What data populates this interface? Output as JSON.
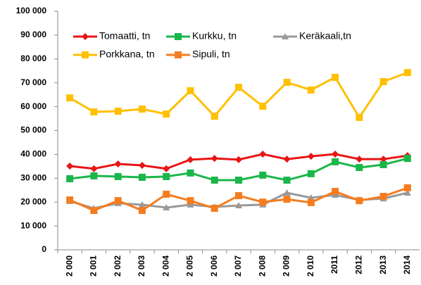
{
  "chart_data": {
    "type": "line",
    "categories": [
      "2 000",
      "2 001",
      "2 002",
      "2 003",
      "2 004",
      "2 005",
      "2 006",
      "2 007",
      "2 008",
      "2 009",
      "2 010",
      "2011",
      "2012",
      "2013",
      "2014"
    ],
    "series": [
      {
        "name": "Tomaatti, tn",
        "color": "#e81515",
        "marker": "diamond",
        "values": [
          35100,
          34000,
          36000,
          35400,
          34000,
          37800,
          38300,
          37800,
          40100,
          38000,
          39200,
          40100,
          38000,
          38000,
          39500
        ]
      },
      {
        "name": "Kurkku, tn",
        "color": "#1bb64a",
        "marker": "square",
        "values": [
          29800,
          31000,
          30700,
          30400,
          30700,
          32200,
          29200,
          29200,
          31300,
          29200,
          31900,
          36900,
          34500,
          35700,
          38300
        ]
      },
      {
        "name": "Keräkaali,tn",
        "color": "#999999",
        "marker": "triangle",
        "values": [
          20400,
          17400,
          19500,
          18900,
          17700,
          18900,
          18000,
          18600,
          18900,
          23900,
          21800,
          23000,
          20900,
          21500,
          23900
        ]
      },
      {
        "name": "Porkkana, tn",
        "color": "#ffc000",
        "marker": "square",
        "values": [
          63700,
          57800,
          58100,
          59000,
          56900,
          66700,
          56000,
          68100,
          60200,
          70200,
          67000,
          72300,
          55500,
          70500,
          74300
        ]
      },
      {
        "name": "Sipuli, tn",
        "color": "#f57c1f",
        "marker": "square",
        "values": [
          20900,
          16500,
          20600,
          16500,
          23300,
          20600,
          17400,
          22700,
          20000,
          21200,
          19800,
          24500,
          20600,
          22400,
          26000
        ]
      }
    ],
    "ylim": [
      0,
      100000
    ],
    "yticks": [
      0,
      {
        "value": 10000,
        "label": "10 000"
      },
      {
        "value": 20000,
        "label": "20 000"
      },
      {
        "value": 30000,
        "label": "30 000"
      },
      {
        "value": 40000,
        "label": "40 000"
      },
      {
        "value": 50000,
        "label": "50 000"
      },
      {
        "value": 60000,
        "label": "60 000"
      },
      {
        "value": 70000,
        "label": "70 000"
      },
      {
        "value": 80000,
        "label": "80 000"
      },
      {
        "value": 90000,
        "label": "90 000"
      },
      {
        "value": 100000,
        "label": "100 000"
      }
    ],
    "grid": false,
    "legend": "top"
  }
}
